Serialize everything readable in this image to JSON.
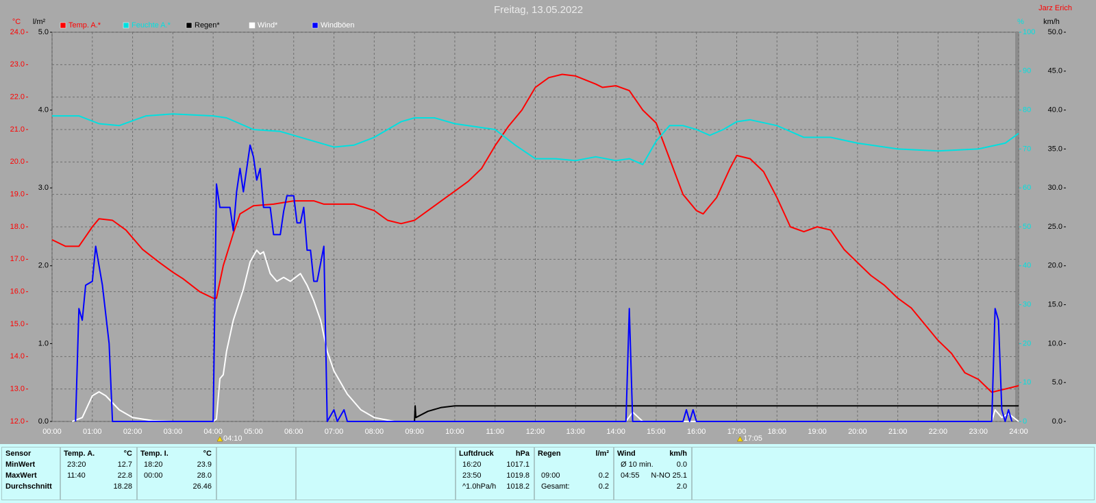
{
  "chart_data": {
    "type": "line",
    "title": "Freitag, 13.05.2022",
    "author": "Jarz Erich",
    "xlim": [
      0,
      24
    ],
    "xticks": [
      {
        "value": 0,
        "label": "00:00"
      },
      {
        "value": 1,
        "label": "01:00"
      },
      {
        "value": 2,
        "label": "02:00"
      },
      {
        "value": 3,
        "label": "03:00"
      },
      {
        "value": 4,
        "label": "04:00"
      },
      {
        "value": 5,
        "label": "05:00"
      },
      {
        "value": 6,
        "label": "06:00"
      },
      {
        "value": 7,
        "label": "07:00"
      },
      {
        "value": 8,
        "label": "08:00"
      },
      {
        "value": 9,
        "label": "09:00"
      },
      {
        "value": 10,
        "label": "10:00"
      },
      {
        "value": 11,
        "label": "11:00"
      },
      {
        "value": 12,
        "label": "12:00"
      },
      {
        "value": 13,
        "label": "13:00"
      },
      {
        "value": 14,
        "label": "14:00"
      },
      {
        "value": 15,
        "label": "15:00"
      },
      {
        "value": 16,
        "label": "16:00"
      },
      {
        "value": 17,
        "label": "17:00"
      },
      {
        "value": 18,
        "label": "18:00"
      },
      {
        "value": 19,
        "label": "19:00"
      },
      {
        "value": 20,
        "label": "20:00"
      },
      {
        "value": 21,
        "label": "21:00"
      },
      {
        "value": 22,
        "label": "22:00"
      },
      {
        "value": 23,
        "label": "23:00"
      },
      {
        "value": 24,
        "label": "24:00"
      }
    ],
    "axis_labels": {
      "y": "°C",
      "y2": "l/m²",
      "y3": "%",
      "y4": "km/h"
    },
    "ylim": [
      12,
      24
    ],
    "yticks": [
      {
        "value": 12,
        "label": "12.0"
      },
      {
        "value": 13,
        "label": "13.0"
      },
      {
        "value": 14,
        "label": "14.0"
      },
      {
        "value": 15,
        "label": "15.0"
      },
      {
        "value": 16,
        "label": "16.0"
      },
      {
        "value": 17,
        "label": "17.0"
      },
      {
        "value": 18,
        "label": "18.0"
      },
      {
        "value": 19,
        "label": "19.0"
      },
      {
        "value": 20,
        "label": "20.0"
      },
      {
        "value": 21,
        "label": "21.0"
      },
      {
        "value": 22,
        "label": "22.0"
      },
      {
        "value": 23,
        "label": "23.0"
      },
      {
        "value": 24,
        "label": "24.0"
      }
    ],
    "y2lim": [
      0,
      5
    ],
    "y2ticks": [
      {
        "value": 0,
        "label": "0.0"
      },
      {
        "value": 1,
        "label": "1.0"
      },
      {
        "value": 2,
        "label": "2.0"
      },
      {
        "value": 3,
        "label": "3.0"
      },
      {
        "value": 4,
        "label": "4.0"
      },
      {
        "value": 5,
        "label": "5.0"
      }
    ],
    "y3lim": [
      0,
      100
    ],
    "y3ticks": [
      0,
      10,
      20,
      30,
      40,
      50,
      60,
      70,
      80,
      90,
      100
    ],
    "y4lim": [
      0,
      50
    ],
    "y4ticks": [
      {
        "value": 0,
        "label": "0.0"
      },
      {
        "value": 5,
        "label": "5.0"
      },
      {
        "value": 10,
        "label": "10.0"
      },
      {
        "value": 15,
        "label": "15.0"
      },
      {
        "value": 20,
        "label": "20.0"
      },
      {
        "value": 25,
        "label": "25.0"
      },
      {
        "value": 30,
        "label": "30.0"
      },
      {
        "value": 35,
        "label": "35.0"
      },
      {
        "value": 40,
        "label": "40.0"
      },
      {
        "value": 45,
        "label": "45.0"
      },
      {
        "value": 50,
        "label": "50.0"
      }
    ],
    "grid": true,
    "annotations": [
      {
        "x": 4.167,
        "label": "04:10"
      },
      {
        "x": 17.083,
        "label": "17:05"
      }
    ],
    "series": [
      {
        "name": "Temp. A.*",
        "color": "#ff0000",
        "axis": "y",
        "x": [
          0,
          0.333,
          0.667,
          1,
          1.167,
          1.5,
          1.833,
          2.25,
          2.667,
          3,
          3.25,
          3.667,
          4,
          4.083,
          4.25,
          4.5,
          4.667,
          5,
          5.5,
          6,
          6.5,
          6.75,
          7,
          7.5,
          8,
          8.333,
          8.667,
          9,
          9.333,
          9.667,
          10,
          10.333,
          10.667,
          11,
          11.333,
          11.667,
          12,
          12.333,
          12.667,
          13,
          13.5,
          13.667,
          14,
          14.333,
          14.667,
          15,
          15.333,
          15.667,
          16,
          16.167,
          16.5,
          16.833,
          17,
          17.333,
          17.667,
          18,
          18.333,
          18.667,
          19,
          19.333,
          19.667,
          20,
          20.333,
          20.667,
          21,
          21.333,
          21.667,
          22,
          22.333,
          22.667,
          23,
          23.333,
          23.667,
          24
        ],
        "values": [
          17.6,
          17.4,
          17.4,
          18.0,
          18.25,
          18.2,
          17.9,
          17.3,
          16.9,
          16.6,
          16.4,
          16.0,
          15.8,
          15.8,
          16.8,
          17.8,
          18.4,
          18.65,
          18.7,
          18.8,
          18.8,
          18.7,
          18.7,
          18.7,
          18.5,
          18.2,
          18.1,
          18.2,
          18.5,
          18.8,
          19.1,
          19.4,
          19.8,
          20.5,
          21.1,
          21.6,
          22.3,
          22.6,
          22.7,
          22.65,
          22.4,
          22.3,
          22.35,
          22.2,
          21.6,
          21.2,
          20.1,
          19.0,
          18.5,
          18.4,
          18.9,
          19.8,
          20.2,
          20.1,
          19.7,
          18.9,
          18.0,
          17.85,
          18.0,
          17.9,
          17.3,
          16.9,
          16.5,
          16.2,
          15.8,
          15.5,
          15.0,
          14.5,
          14.1,
          13.5,
          13.3,
          12.9,
          13.0,
          13.1
        ]
      },
      {
        "name": "Feuchte A.*",
        "color": "#00e0e0",
        "axis": "y3",
        "x": [
          0,
          0.667,
          1.167,
          1.667,
          2.333,
          3,
          4,
          4.333,
          5,
          5.667,
          6.333,
          7,
          7.5,
          8,
          8.667,
          9,
          9.5,
          10,
          11,
          11.5,
          12,
          12.5,
          13,
          13.5,
          14,
          14.333,
          14.667,
          15,
          15.333,
          15.667,
          16,
          16.333,
          16.667,
          17,
          17.333,
          18,
          18.667,
          19,
          19.333,
          20,
          21,
          22,
          23,
          23.667,
          24
        ],
        "values": [
          78.5,
          78.5,
          76.5,
          76,
          78.5,
          79,
          78.5,
          78,
          75,
          74.5,
          72.5,
          70.5,
          71,
          73,
          77,
          78,
          78,
          76.5,
          75,
          71,
          67.5,
          67.5,
          67,
          68,
          67,
          67.5,
          66,
          72,
          76,
          76,
          75,
          73.5,
          75,
          77,
          77.5,
          76,
          73,
          73,
          73,
          71.5,
          70,
          69.5,
          70,
          71.5,
          74
        ]
      },
      {
        "name": "Regen*",
        "color": "#000000",
        "axis": "y2",
        "x": [
          9,
          9.017,
          9.033,
          9.333,
          9.667,
          10,
          24
        ],
        "values": [
          0,
          0.2,
          0.05,
          0.13,
          0.18,
          0.2,
          0.2
        ]
      },
      {
        "name": "Wind*",
        "color": "#ffffff",
        "axis": "y4",
        "x": [
          0.5,
          0.75,
          1,
          1.167,
          1.333,
          1.667,
          2,
          2.5,
          3,
          4,
          4.083,
          4.167,
          4.25,
          4.333,
          4.5,
          4.75,
          4.917,
          5.083,
          5.167,
          5.25,
          5.417,
          5.583,
          5.75,
          5.917,
          6.167,
          6.333,
          6.5,
          6.667,
          6.833,
          7,
          7.333,
          7.667,
          8,
          8.5,
          14.25,
          14.417,
          14.667,
          23.333,
          23.417,
          23.583,
          23.75,
          24
        ],
        "values": [
          0,
          0.5,
          3.3,
          3.8,
          3.3,
          1.5,
          0.5,
          0.1,
          0,
          0,
          0.3,
          5.5,
          6,
          9,
          13,
          17,
          20.5,
          22,
          21.5,
          21.8,
          19,
          18,
          18.5,
          18,
          19,
          17.5,
          15.5,
          13,
          9,
          6.5,
          3.5,
          1.5,
          0.5,
          0,
          0,
          1.2,
          0,
          0,
          1.5,
          0.5,
          1,
          0
        ]
      },
      {
        "name": "Windböen",
        "color": "#0000ff",
        "axis": "y4",
        "x": [
          0.583,
          0.667,
          0.75,
          0.833,
          1,
          1.083,
          1.25,
          1.417,
          1.5,
          4,
          4.083,
          4.167,
          4.417,
          4.5,
          4.583,
          4.667,
          4.75,
          4.917,
          5,
          5.083,
          5.167,
          5.25,
          5.417,
          5.5,
          5.667,
          5.75,
          5.833,
          6,
          6.083,
          6.167,
          6.25,
          6.333,
          6.417,
          6.5,
          6.583,
          6.75,
          6.833,
          7,
          7.083,
          7.25,
          7.333,
          14.25,
          14.333,
          14.417,
          15.667,
          15.75,
          15.833,
          15.917,
          16,
          23.333,
          23.417,
          23.5,
          23.583,
          23.667,
          23.75,
          23.833
        ],
        "values": [
          0,
          14.5,
          13,
          17.5,
          18,
          22.5,
          17.5,
          10,
          0,
          0,
          30.5,
          27.5,
          27.5,
          24.5,
          29.5,
          32.5,
          29.5,
          35.5,
          34,
          31,
          32.5,
          27.5,
          27.5,
          24,
          24,
          27,
          29,
          29,
          25.5,
          25.5,
          27.5,
          22,
          22,
          18,
          18,
          22.5,
          0,
          1.5,
          0,
          1.5,
          0,
          0,
          14.5,
          0,
          0,
          1.5,
          0,
          1.5,
          0,
          0,
          14.5,
          13,
          1.5,
          0,
          1.5,
          0
        ]
      }
    ]
  },
  "table": {
    "row_labels": [
      "Sensor",
      "MinWert",
      "MaxWert",
      "Durchschnitt"
    ],
    "blocks": [
      {
        "title": "Temp. A.",
        "unit": "°C",
        "rows": [
          [
            "23:20",
            "12.7"
          ],
          [
            "11:40",
            "22.8"
          ],
          [
            null,
            "18.28"
          ]
        ]
      },
      {
        "title": "Temp. I.",
        "unit": "°C",
        "rows": [
          [
            "18:20",
            "23.9"
          ],
          [
            "00:00",
            "28.0"
          ],
          [
            null,
            "26.46"
          ]
        ]
      },
      {
        "title": "Luftdruck",
        "unit": "hPa",
        "rows": [
          [
            "16:20",
            "1017.1"
          ],
          [
            "23:50",
            "1019.8"
          ],
          [
            "^1.0hPa/h",
            "1018.2"
          ]
        ]
      },
      {
        "title": "Regen",
        "unit": "l/m²",
        "rows": [
          [
            null,
            null
          ],
          [
            "09:00",
            "0.2"
          ],
          [
            "Gesamt:",
            "0.2"
          ]
        ]
      },
      {
        "title": "Wind",
        "unit": "km/h",
        "rows": [
          [
            "Ø 10 min.",
            "0.0"
          ],
          [
            "04:55",
            "N-NO 25.1"
          ],
          [
            null,
            "2.0"
          ]
        ]
      }
    ]
  }
}
